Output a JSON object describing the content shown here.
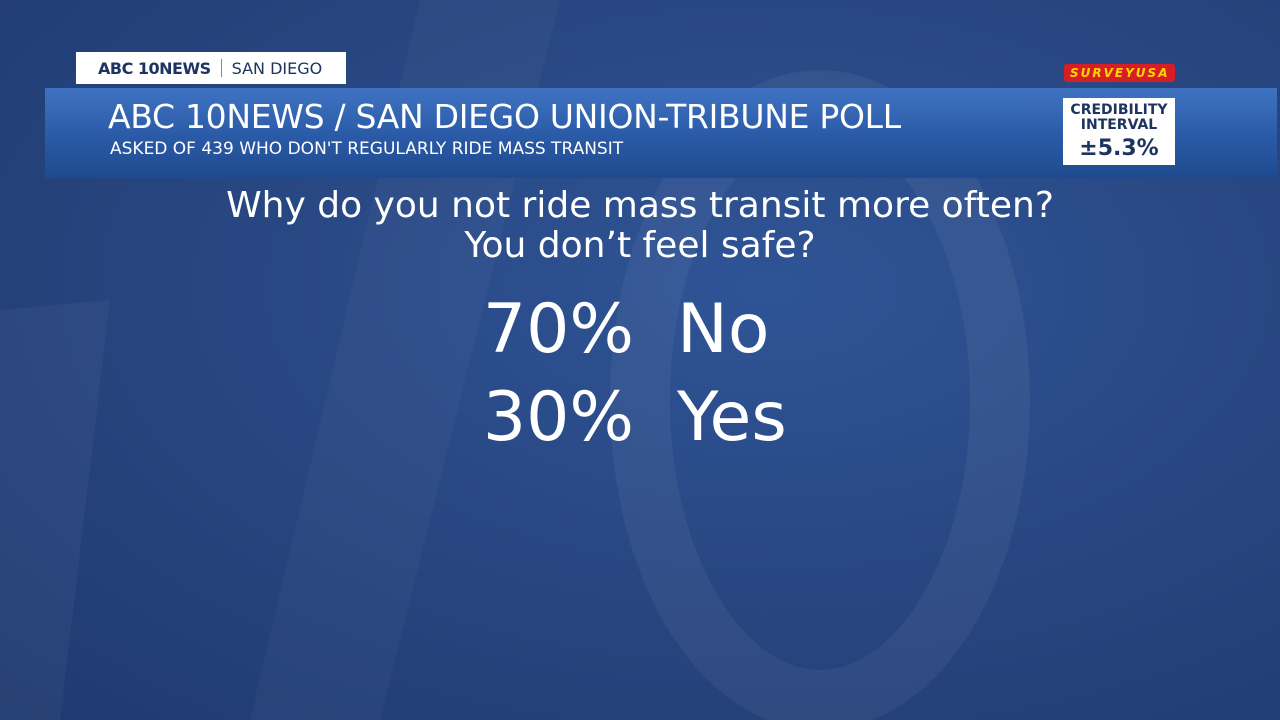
{
  "header": {
    "station": "ABC 10NEWS",
    "location": "SAN DIEGO",
    "logo": "SURVEYUSA",
    "title": "ABC 10NEWS / SAN DIEGO UNION-TRIBUNE POLL",
    "subtitle": "ASKED OF 439 WHO DON'T REGULARLY RIDE MASS TRANSIT",
    "credibility_label": [
      "CREDIBILITY",
      "INTERVAL"
    ],
    "credibility_value": "±5.3%"
  },
  "question": [
    "Why do you not ride mass transit more often?",
    "You don’t feel safe?"
  ],
  "results": [
    {
      "value": "70%",
      "label": "No"
    },
    {
      "value": "30%",
      "label": "Yes"
    }
  ]
}
